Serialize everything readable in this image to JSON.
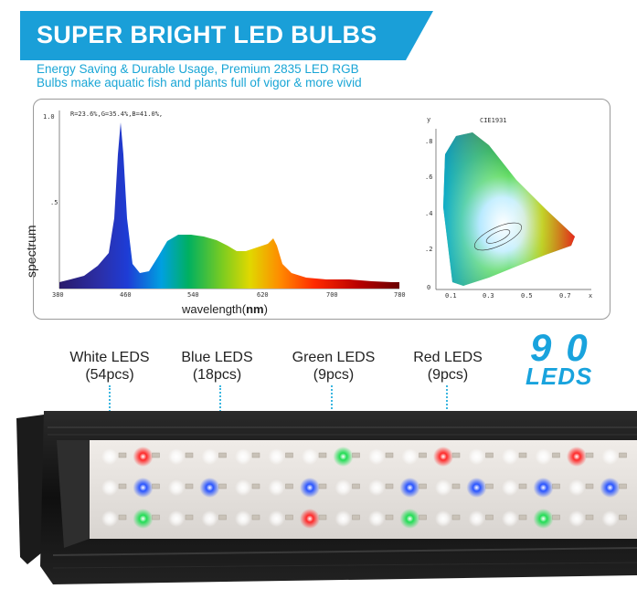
{
  "banner": {
    "title": "SUPER BRIGHT LED BULBS",
    "color": "#1a9fd8"
  },
  "subtitle": {
    "line1": "Energy Saving & Durable Usage, Premium 2835 LED RGB",
    "line2": "Bulbs make aquatic fish and plants full of vigor & more vivid"
  },
  "spectrum": {
    "ratio_text": "R=23.6%,G=35.4%,B=41.0%,",
    "ylabel": "spectrum",
    "xlabel_prefix": "wavelength(",
    "xlabel_unit": "nm",
    "xlabel_suffix": ")",
    "y_ticks": [
      "1.0",
      ".5"
    ],
    "x_ticks": [
      "380",
      "460",
      "540",
      "620",
      "700",
      "780"
    ]
  },
  "cie": {
    "title": "CIE1931",
    "y_axis": "y",
    "x_axis": "x",
    "y_ticks": [
      ".8",
      ".6",
      ".4",
      ".2",
      "0"
    ],
    "x_ticks": [
      "0.1",
      "0.3",
      "0.5",
      "0.7"
    ]
  },
  "leds": {
    "white": {
      "name": "White LEDS",
      "count": "(54pcs)"
    },
    "blue": {
      "name": "Blue LEDS",
      "count": "(18pcs)"
    },
    "green": {
      "name": "Green LEDS",
      "count": "(9pcs)"
    },
    "red": {
      "name": "Red LEDS",
      "count": "(9pcs)"
    },
    "total_number": "90",
    "total_label": "LEDS"
  },
  "colors": {
    "accent": "#19a3dd",
    "bar_body": "#1a1a1a",
    "led_white": "#ffffff",
    "led_red": "#ff2a2a",
    "led_blue": "#2a55ff",
    "led_green": "#22dd55"
  }
}
